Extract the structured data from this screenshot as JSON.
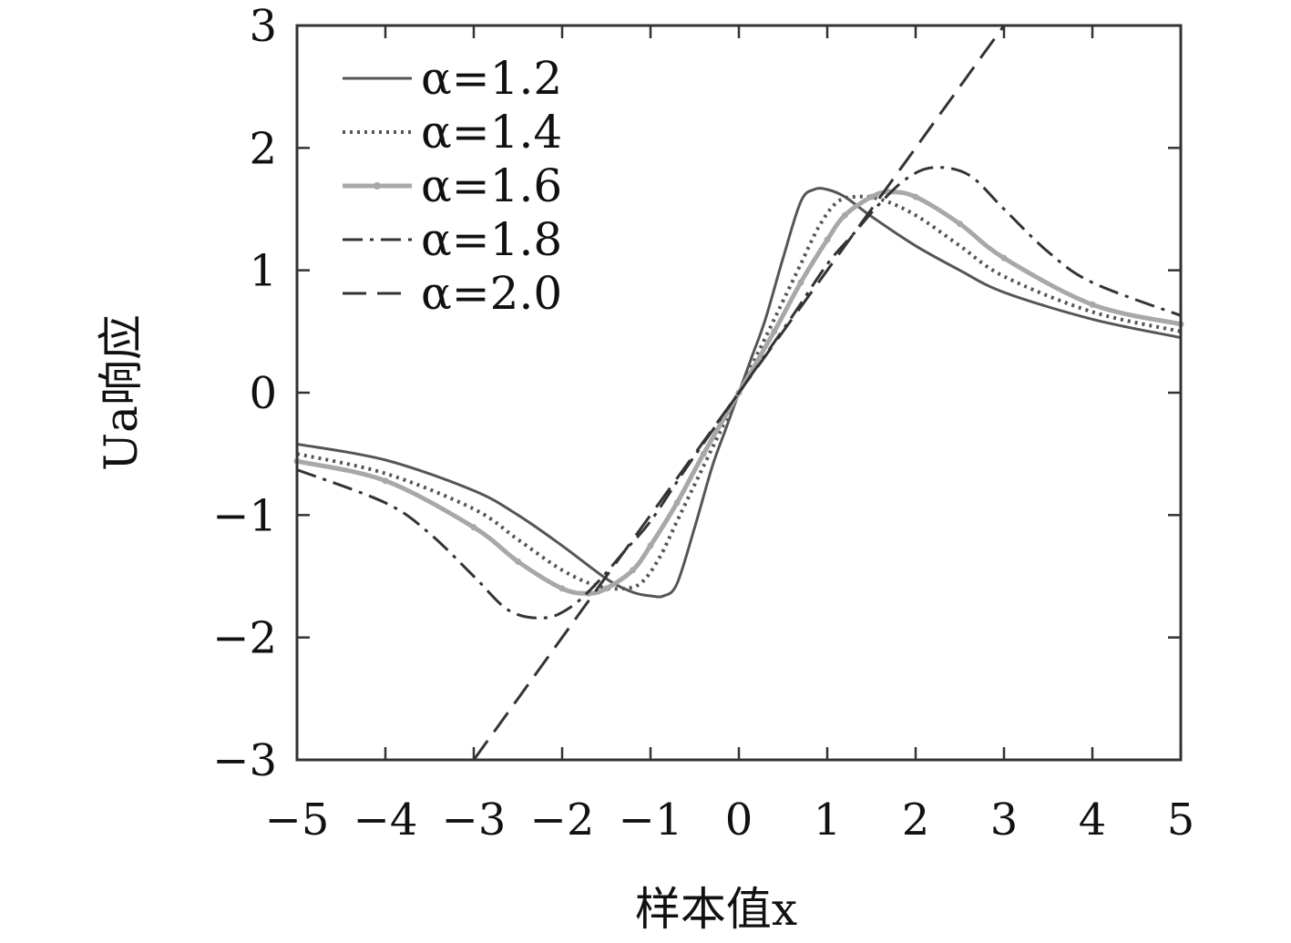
{
  "chart_data": {
    "type": "line",
    "title": "",
    "xlabel": "样本值x",
    "ylabel": "Ua响应",
    "xlim": [
      -5,
      5
    ],
    "ylim": [
      -3,
      3
    ],
    "xticks": [
      -5,
      -4,
      -3,
      -2,
      -1,
      0,
      1,
      2,
      3,
      4,
      5
    ],
    "yticks": [
      -3,
      -2,
      -1,
      0,
      1,
      2,
      3
    ],
    "xtick_labels": [
      "−5",
      "−4",
      "−3",
      "−2",
      "−1",
      "0",
      "1",
      "2",
      "3",
      "4",
      "5"
    ],
    "ytick_labels": [
      "−3",
      "−2",
      "−1",
      "0",
      "1",
      "2",
      "3"
    ],
    "grid": false,
    "legend_position": "top-left",
    "series": [
      {
        "name": "α=1.2",
        "style": "solid",
        "color": "#555555",
        "x": [
          -5,
          -4,
          -3,
          -2.5,
          -2,
          -1.5,
          -1.2,
          -1,
          -0.85,
          -0.7,
          -0.5,
          -0.3,
          -0.15,
          0,
          0.15,
          0.3,
          0.5,
          0.7,
          0.85,
          1,
          1.2,
          1.5,
          2,
          2.5,
          3,
          4,
          5
        ],
        "y": [
          -0.42,
          -0.55,
          -0.8,
          -1.0,
          -1.25,
          -1.52,
          -1.63,
          -1.66,
          -1.66,
          -1.56,
          -1.1,
          -0.6,
          -0.3,
          0.0,
          0.3,
          0.6,
          1.1,
          1.56,
          1.66,
          1.66,
          1.6,
          1.44,
          1.2,
          1.0,
          0.82,
          0.6,
          0.45
        ]
      },
      {
        "name": "α=1.4",
        "style": "dotted",
        "color": "#555555",
        "x": [
          -5,
          -4,
          -3,
          -2.5,
          -2,
          -1.6,
          -1.3,
          -1.1,
          -0.9,
          -0.7,
          -0.5,
          -0.3,
          0,
          0.3,
          0.5,
          0.7,
          0.9,
          1.1,
          1.3,
          1.6,
          2,
          2.5,
          3,
          4,
          5
        ],
        "y": [
          -0.5,
          -0.66,
          -0.95,
          -1.2,
          -1.45,
          -1.58,
          -1.6,
          -1.55,
          -1.35,
          -1.05,
          -0.75,
          -0.45,
          0.0,
          0.45,
          0.75,
          1.05,
          1.35,
          1.55,
          1.6,
          1.58,
          1.45,
          1.2,
          0.95,
          0.66,
          0.5
        ]
      },
      {
        "name": "α=1.6",
        "style": "marker",
        "color": "#a8a8a8",
        "x": [
          -5,
          -4,
          -3,
          -2.5,
          -2,
          -1.7,
          -1.5,
          -1.2,
          -1,
          -0.7,
          -0.4,
          0,
          0.4,
          0.7,
          1,
          1.2,
          1.5,
          1.7,
          2,
          2.5,
          3,
          4,
          5
        ],
        "y": [
          -0.56,
          -0.72,
          -1.1,
          -1.38,
          -1.6,
          -1.64,
          -1.6,
          -1.45,
          -1.25,
          -0.9,
          -0.5,
          0.0,
          0.5,
          0.9,
          1.25,
          1.45,
          1.6,
          1.64,
          1.6,
          1.38,
          1.1,
          0.72,
          0.56
        ]
      },
      {
        "name": "α=1.8",
        "style": "dashdot",
        "color": "#333333",
        "x": [
          -5,
          -4,
          -3.5,
          -3,
          -2.6,
          -2.2,
          -1.9,
          -1.6,
          -1.3,
          -1,
          -0.6,
          0,
          0.6,
          1,
          1.3,
          1.6,
          1.9,
          2.2,
          2.6,
          3,
          3.5,
          4,
          5
        ],
        "y": [
          -0.63,
          -0.9,
          -1.15,
          -1.5,
          -1.78,
          -1.84,
          -1.75,
          -1.55,
          -1.3,
          -1.05,
          -0.62,
          0.0,
          0.62,
          1.05,
          1.3,
          1.55,
          1.75,
          1.84,
          1.78,
          1.5,
          1.15,
          0.9,
          0.63
        ]
      },
      {
        "name": "α=2.0",
        "style": "dashed",
        "color": "#333333",
        "x": [
          -3,
          3
        ],
        "y": [
          -3,
          3
        ]
      }
    ]
  }
}
